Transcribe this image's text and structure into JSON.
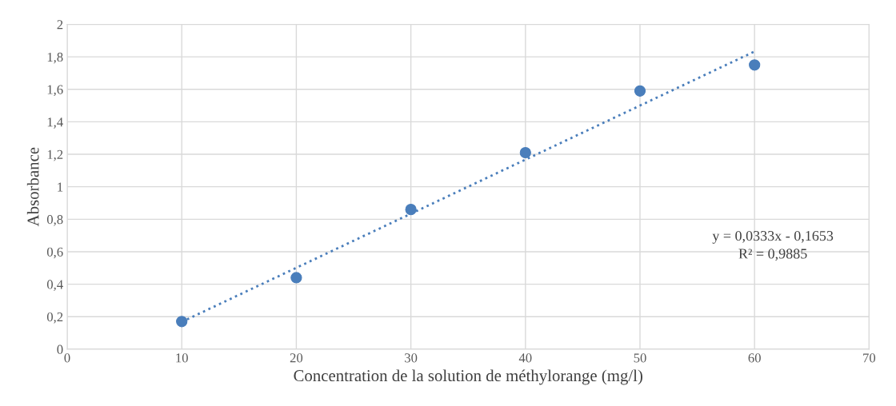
{
  "chart_data": {
    "type": "scatter",
    "xlabel": "Concentration de la solution de méthylorange (mg/l)",
    "ylabel": "Absorbance",
    "series": [
      {
        "color": "#4a7ebb",
        "x": [
          10,
          20,
          30,
          40,
          50,
          60
        ],
        "values": [
          0.17,
          0.44,
          0.86,
          1.21,
          1.59,
          1.75
        ],
        "marker": "circle"
      },
      {
        "type": "line",
        "color": "#4a7ebb",
        "x": [
          10,
          60
        ],
        "values": [
          0.168,
          1.833
        ],
        "line_style": "dotted"
      }
    ],
    "annotations": [
      "y = 0,0333x - 0,1653",
      "R² = 0,9885"
    ],
    "xlim": [
      0,
      70
    ],
    "xticks": [
      0,
      10,
      20,
      30,
      40,
      50,
      60,
      70
    ],
    "ylim": [
      0,
      2
    ],
    "yticks": [
      0,
      {
        "value": 0.2,
        "label": "0,2"
      },
      {
        "value": 0.4,
        "label": "0,4"
      },
      {
        "value": 0.6,
        "label": "0,6"
      },
      {
        "value": 0.8,
        "label": "0,8"
      },
      1,
      {
        "value": 1.2,
        "label": "1,2"
      },
      {
        "value": 1.4,
        "label": "1,4"
      },
      {
        "value": 1.6,
        "label": "1,6"
      },
      {
        "value": 1.8,
        "label": "1,8"
      },
      2
    ],
    "grid": true,
    "legend": false
  }
}
